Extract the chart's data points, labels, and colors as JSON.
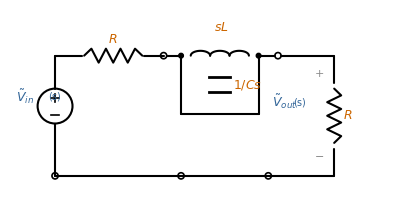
{
  "bg_color": "#ffffff",
  "wire_color": "#000000",
  "component_color": "#000000",
  "label_color_orange": "#cc6600",
  "label_color_blue": "#336699",
  "label_color_gray": "#888888",
  "figsize": [
    3.97,
    2.16
  ],
  "dpi": 100
}
